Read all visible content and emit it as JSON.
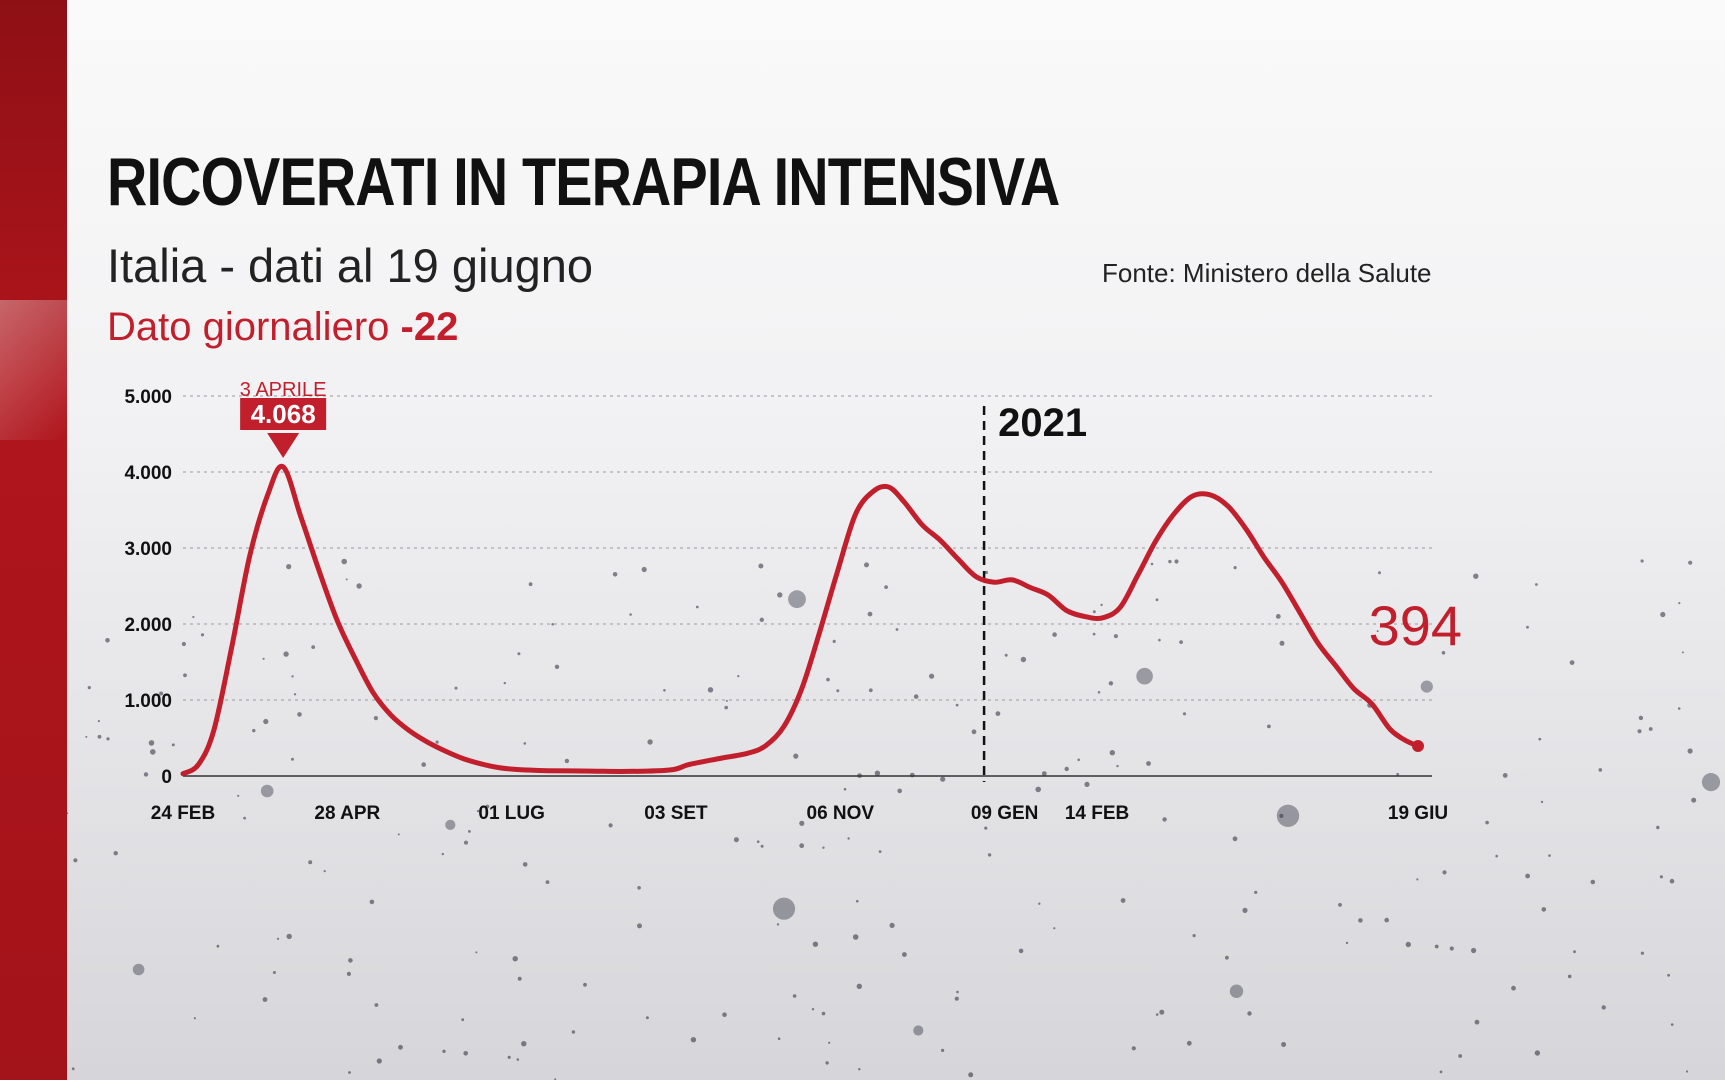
{
  "header": {
    "title": "RICOVERATI IN TERAPIA INTENSIVA",
    "subtitle": "Italia - dati al 19 giugno",
    "daily_label": "Dato giornaliero",
    "daily_value": "-22",
    "source": "Fonte: Ministero della Salute"
  },
  "colors": {
    "accent": "#c21f2d",
    "band": "#a3131a",
    "text": "#111111"
  },
  "chart_data": {
    "type": "line",
    "title": "RICOVERATI IN TERAPIA INTENSIVA",
    "xlabel": "",
    "ylabel": "",
    "ylim": [
      0,
      5000
    ],
    "grid": true,
    "y_ticks": [
      {
        "value": 0,
        "label": "0"
      },
      {
        "value": 1000,
        "label": "1.000"
      },
      {
        "value": 2000,
        "label": "2.000"
      },
      {
        "value": 3000,
        "label": "3.000"
      },
      {
        "value": 4000,
        "label": "4.000"
      },
      {
        "value": 5000,
        "label": "5.000"
      }
    ],
    "x_ticks": [
      {
        "date": "2020-02-24",
        "label": "24 FEB"
      },
      {
        "date": "2020-04-28",
        "label": "28 APR"
      },
      {
        "date": "2020-07-01",
        "label": "01 LUG"
      },
      {
        "date": "2020-09-03",
        "label": "03 SET"
      },
      {
        "date": "2020-11-06",
        "label": "06 NOV"
      },
      {
        "date": "2021-01-09",
        "label": "09 GEN"
      },
      {
        "date": "2021-02-14",
        "label": "14 FEB"
      },
      {
        "date": "2021-06-19",
        "label": "19 GIU"
      }
    ],
    "xlim": [
      "2020-02-24",
      "2021-06-19"
    ],
    "series": [
      {
        "points": [
          [
            "2020-02-24",
            30
          ],
          [
            "2020-03-01",
            150
          ],
          [
            "2020-03-07",
            600
          ],
          [
            "2020-03-14",
            1700
          ],
          [
            "2020-03-21",
            2900
          ],
          [
            "2020-03-28",
            3700
          ],
          [
            "2020-04-03",
            4068
          ],
          [
            "2020-04-10",
            3400
          ],
          [
            "2020-04-17",
            2700
          ],
          [
            "2020-04-24",
            2050
          ],
          [
            "2020-05-01",
            1550
          ],
          [
            "2020-05-08",
            1100
          ],
          [
            "2020-05-15",
            800
          ],
          [
            "2020-05-22",
            600
          ],
          [
            "2020-05-29",
            450
          ],
          [
            "2020-06-05",
            330
          ],
          [
            "2020-06-12",
            230
          ],
          [
            "2020-06-19",
            160
          ],
          [
            "2020-06-26",
            110
          ],
          [
            "2020-07-03",
            85
          ],
          [
            "2020-07-15",
            70
          ],
          [
            "2020-08-01",
            65
          ],
          [
            "2020-08-15",
            60
          ],
          [
            "2020-09-01",
            80
          ],
          [
            "2020-09-08",
            150
          ],
          [
            "2020-09-20",
            230
          ],
          [
            "2020-10-01",
            300
          ],
          [
            "2020-10-08",
            400
          ],
          [
            "2020-10-15",
            650
          ],
          [
            "2020-10-22",
            1150
          ],
          [
            "2020-10-29",
            1900
          ],
          [
            "2020-11-05",
            2700
          ],
          [
            "2020-11-12",
            3450
          ],
          [
            "2020-11-19",
            3750
          ],
          [
            "2020-11-25",
            3800
          ],
          [
            "2020-12-01",
            3600
          ],
          [
            "2020-12-08",
            3300
          ],
          [
            "2020-12-15",
            3100
          ],
          [
            "2020-12-22",
            2850
          ],
          [
            "2020-12-29",
            2620
          ],
          [
            "2021-01-05",
            2550
          ],
          [
            "2021-01-12",
            2580
          ],
          [
            "2021-01-19",
            2480
          ],
          [
            "2021-01-26",
            2380
          ],
          [
            "2021-02-02",
            2180
          ],
          [
            "2021-02-09",
            2100
          ],
          [
            "2021-02-16",
            2080
          ],
          [
            "2021-02-23",
            2220
          ],
          [
            "2021-03-02",
            2650
          ],
          [
            "2021-03-09",
            3100
          ],
          [
            "2021-03-16",
            3450
          ],
          [
            "2021-03-23",
            3680
          ],
          [
            "2021-03-30",
            3700
          ],
          [
            "2021-04-06",
            3550
          ],
          [
            "2021-04-13",
            3250
          ],
          [
            "2021-04-20",
            2880
          ],
          [
            "2021-04-27",
            2550
          ],
          [
            "2021-05-04",
            2150
          ],
          [
            "2021-05-11",
            1750
          ],
          [
            "2021-05-18",
            1450
          ],
          [
            "2021-05-25",
            1150
          ],
          [
            "2021-06-01",
            950
          ],
          [
            "2021-06-08",
            620
          ],
          [
            "2021-06-14",
            470
          ],
          [
            "2021-06-19",
            394
          ]
        ]
      }
    ],
    "year_marker": {
      "date": "2021-01-01",
      "label": "2021"
    },
    "annotations": [
      {
        "date": "2020-04-03",
        "value": 4068,
        "date_label": "3 APRILE",
        "value_label": "4.068"
      },
      {
        "date": "2021-06-19",
        "value": 394,
        "value_label": "394"
      }
    ]
  }
}
